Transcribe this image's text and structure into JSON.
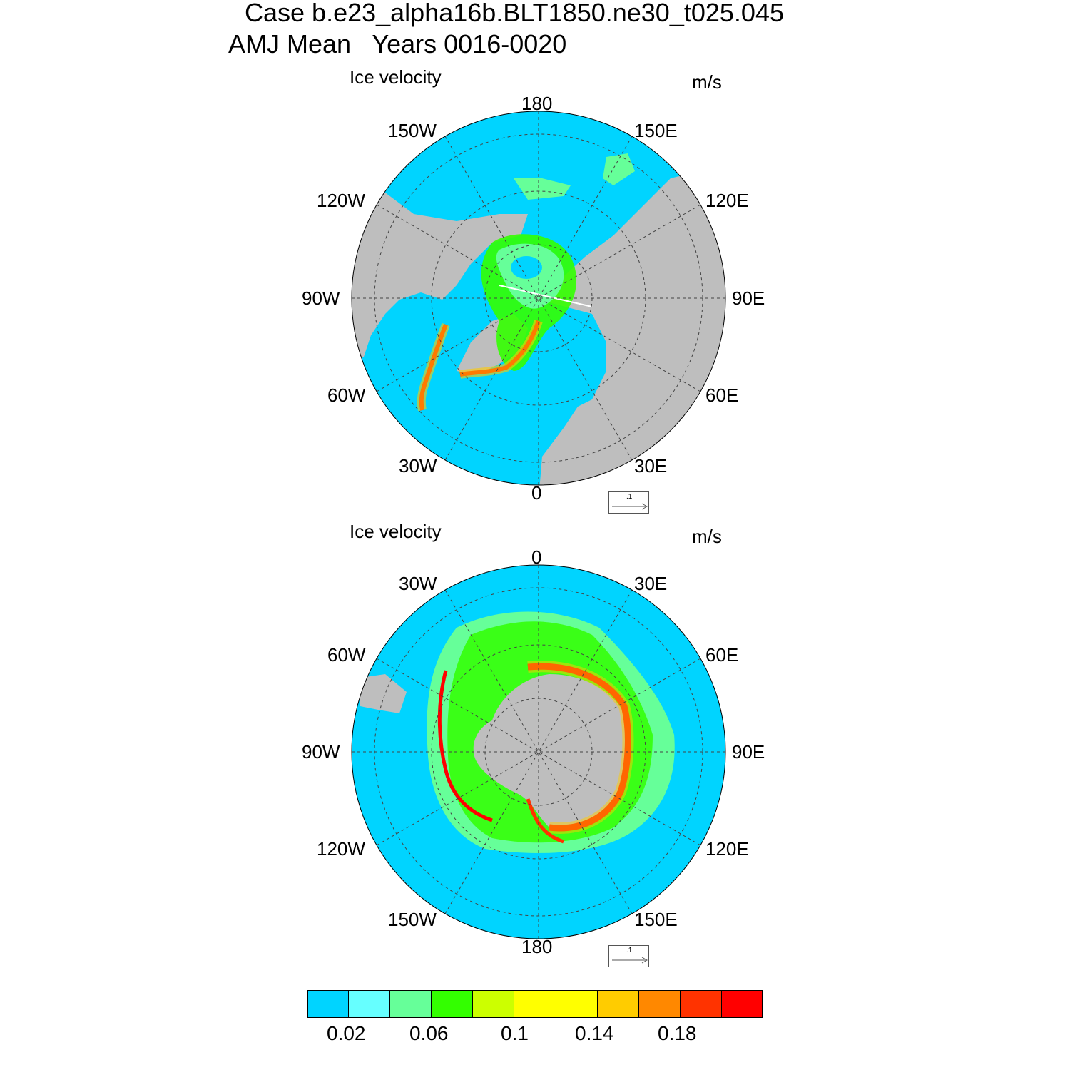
{
  "header": {
    "line1": "Case b.e23_alpha16b.BLT1850.ne30_t025.045",
    "line2": "AMJ Mean   Years 0016-0020"
  },
  "panels": [
    {
      "title": "Ice velocity",
      "units": "m/s",
      "labels": {
        "top": "180",
        "bottom": "0",
        "left": "90W",
        "right": "90E",
        "ul1": "150W",
        "ur1": "150E",
        "ul2": "120W",
        "ur2": "120E",
        "ll2": "60W",
        "lr2": "60E",
        "ll1": "30W",
        "lr1": "30E"
      },
      "ref_vector": ".1"
    },
    {
      "title": "Ice velocity",
      "units": "m/s",
      "labels": {
        "top": "0",
        "bottom": "180",
        "left": "90W",
        "right": "90E",
        "ul1": "30W",
        "ur1": "30E",
        "ul2": "60W",
        "ur2": "60E",
        "ll2": "120W",
        "lr2": "120E",
        "ll1": "150W",
        "lr1": "150E"
      },
      "ref_vector": ".1"
    }
  ],
  "colorbar": {
    "colors": [
      "#00d4ff",
      "#66ffff",
      "#66ff99",
      "#33ff00",
      "#ccff00",
      "#ffff00",
      "#ffff00",
      "#ffcc00",
      "#ff8800",
      "#ff3300",
      "#ff0000"
    ],
    "tick_labels": [
      "0.02",
      "0.06",
      "0.1",
      "0.14",
      "0.18"
    ]
  },
  "colors": {
    "ocean": "#00d4ff",
    "land": "#bebebe"
  }
}
